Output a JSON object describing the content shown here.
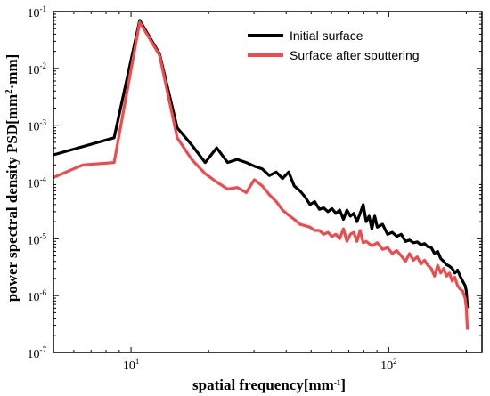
{
  "chart_data": {
    "type": "line",
    "xscale": "log",
    "yscale": "log",
    "xlim": [
      5,
      230
    ],
    "ylim": [
      1e-07,
      0.1
    ],
    "xlabel_parts": [
      "spatial frequency[mm",
      "-1",
      "]"
    ],
    "ylabel_parts": [
      "power spectral density PSD[mm",
      "2",
      "·mm]"
    ],
    "x_ticks": [
      {
        "value": 10,
        "base": "10",
        "exp": "1"
      },
      {
        "value": 100,
        "base": "10",
        "exp": "2"
      }
    ],
    "y_ticks": [
      {
        "value": 1e-07,
        "base": "10",
        "exp": "-7"
      },
      {
        "value": 1e-06,
        "base": "10",
        "exp": "-6"
      },
      {
        "value": 1e-05,
        "base": "10",
        "exp": "-5"
      },
      {
        "value": 0.0001,
        "base": "10",
        "exp": "-4"
      },
      {
        "value": 0.001,
        "base": "10",
        "exp": "-3"
      },
      {
        "value": 0.01,
        "base": "10",
        "exp": "-2"
      },
      {
        "value": 0.1,
        "base": "10",
        "exp": "-1"
      }
    ],
    "legend_position": "top-right",
    "series": [
      {
        "name": "Initial surface",
        "color": "#000000",
        "points": [
          [
            5,
            0.0003
          ],
          [
            8.6,
            0.0006
          ],
          [
            10.8,
            0.07
          ],
          [
            12.9,
            0.018
          ],
          [
            15.1,
            0.0009
          ],
          [
            17.2,
            0.00045
          ],
          [
            19.4,
            0.00022
          ],
          [
            21.5,
            0.0004
          ],
          [
            23.7,
            0.00022
          ],
          [
            25.8,
            0.00025
          ],
          [
            28,
            0.00022
          ],
          [
            30.1,
            0.00019
          ],
          [
            32.3,
            0.00017
          ],
          [
            34.4,
            0.00013
          ],
          [
            36.6,
            0.00015
          ],
          [
            38.7,
            0.000115
          ],
          [
            40.9,
            0.00015
          ],
          [
            43,
            8.5e-05
          ],
          [
            45.2,
            7e-05
          ],
          [
            47.3,
            5.5e-05
          ],
          [
            49.5,
            4e-05
          ],
          [
            51.6,
            4.5e-05
          ],
          [
            53.8,
            3.3e-05
          ],
          [
            55.9,
            3.5e-05
          ],
          [
            58.1,
            3e-05
          ],
          [
            60.2,
            3.4e-05
          ],
          [
            62.4,
            2.8e-05
          ],
          [
            64.5,
            3.2e-05
          ],
          [
            66.7,
            2.2e-05
          ],
          [
            68.8,
            3.2e-05
          ],
          [
            71,
            2.5e-05
          ],
          [
            73.1,
            2.8e-05
          ],
          [
            75.3,
            2e-05
          ],
          [
            77.4,
            2.8e-05
          ],
          [
            79.6,
            4e-05
          ],
          [
            81.7,
            2e-05
          ],
          [
            83.9,
            2.5e-05
          ],
          [
            86,
            1.5e-05
          ],
          [
            88.2,
            2.5e-05
          ],
          [
            90.3,
            1.6e-05
          ],
          [
            94.6,
            1.8e-05
          ],
          [
            98.9,
            1.2e-05
          ],
          [
            103.2,
            1.3e-05
          ],
          [
            107.5,
            1.1e-05
          ],
          [
            111.8,
            1.2e-05
          ],
          [
            116.1,
            9e-06
          ],
          [
            120.4,
            9.5e-06
          ],
          [
            124.7,
            8.5e-06
          ],
          [
            129,
            8.8e-06
          ],
          [
            133.3,
            7.8e-06
          ],
          [
            137.6,
            8.2e-06
          ],
          [
            141.9,
            7.2e-06
          ],
          [
            146.2,
            7e-06
          ],
          [
            150.5,
            5.5e-06
          ],
          [
            154.8,
            6e-06
          ],
          [
            159.1,
            4.5e-06
          ],
          [
            163.4,
            4e-06
          ],
          [
            167.7,
            3.5e-06
          ],
          [
            172,
            3.3e-06
          ],
          [
            176.3,
            3e-06
          ],
          [
            180.6,
            2.5e-06
          ],
          [
            184.9,
            2.8e-06
          ],
          [
            189.2,
            2.2e-06
          ],
          [
            193.5,
            1.8e-06
          ],
          [
            197.8,
            1.5e-06
          ],
          [
            200,
            1.2e-06
          ],
          [
            202,
            6e-07
          ]
        ]
      },
      {
        "name": "Surface after sputtering",
        "color": "#f04a4d",
        "points": [
          [
            5,
            0.00012
          ],
          [
            6.5,
            0.0002
          ],
          [
            8.6,
            0.00022
          ],
          [
            10.8,
            0.065
          ],
          [
            12.9,
            0.017
          ],
          [
            15.1,
            0.0006
          ],
          [
            17.2,
            0.00025
          ],
          [
            19.4,
            0.00014
          ],
          [
            21.5,
            0.0001
          ],
          [
            23.7,
            7.5e-05
          ],
          [
            25.8,
            8e-05
          ],
          [
            28,
            6.5e-05
          ],
          [
            30.1,
            0.00011
          ],
          [
            32.3,
            8.5e-05
          ],
          [
            34.4,
            6e-05
          ],
          [
            36.6,
            4.5e-05
          ],
          [
            38.7,
            3.2e-05
          ],
          [
            40.9,
            2.6e-05
          ],
          [
            43,
            2.2e-05
          ],
          [
            45.2,
            1.8e-05
          ],
          [
            47.3,
            1.7e-05
          ],
          [
            49.5,
            1.6e-05
          ],
          [
            51.6,
            1.4e-05
          ],
          [
            53.8,
            1.4e-05
          ],
          [
            55.9,
            1.2e-05
          ],
          [
            58.1,
            1.3e-05
          ],
          [
            60.2,
            1.1e-05
          ],
          [
            62.4,
            1.2e-05
          ],
          [
            64.5,
            1e-05
          ],
          [
            66.7,
            1.5e-05
          ],
          [
            68.8,
            9e-06
          ],
          [
            71,
            1.2e-05
          ],
          [
            73.1,
            1.3e-05
          ],
          [
            75.3,
            9e-06
          ],
          [
            77.4,
            1.4e-05
          ],
          [
            79.6,
            8.5e-06
          ],
          [
            81.7,
            9e-06
          ],
          [
            86,
            7.5e-06
          ],
          [
            90.3,
            8.5e-06
          ],
          [
            94.6,
            6.5e-06
          ],
          [
            98.9,
            7e-06
          ],
          [
            103.2,
            5.5e-06
          ],
          [
            107.5,
            6.2e-06
          ],
          [
            111.8,
            5e-06
          ],
          [
            116.1,
            4e-06
          ],
          [
            120.4,
            5.5e-06
          ],
          [
            124.7,
            4.2e-06
          ],
          [
            129,
            4.8e-06
          ],
          [
            133.3,
            3.6e-06
          ],
          [
            137.6,
            4.2e-06
          ],
          [
            141.9,
            3.4e-06
          ],
          [
            146.2,
            3e-06
          ],
          [
            150.5,
            2.2e-06
          ],
          [
            154.8,
            3.4e-06
          ],
          [
            159.1,
            2.5e-06
          ],
          [
            163.4,
            3e-06
          ],
          [
            167.7,
            2.2e-06
          ],
          [
            172,
            2.5e-06
          ],
          [
            176.3,
            1.8e-06
          ],
          [
            180.6,
            2.1e-06
          ],
          [
            184.9,
            1.5e-06
          ],
          [
            189.2,
            1.3e-06
          ],
          [
            193.5,
            1.2e-06
          ],
          [
            197.8,
            9e-07
          ],
          [
            200,
            6e-07
          ],
          [
            202,
            2.5e-07
          ]
        ]
      }
    ]
  }
}
